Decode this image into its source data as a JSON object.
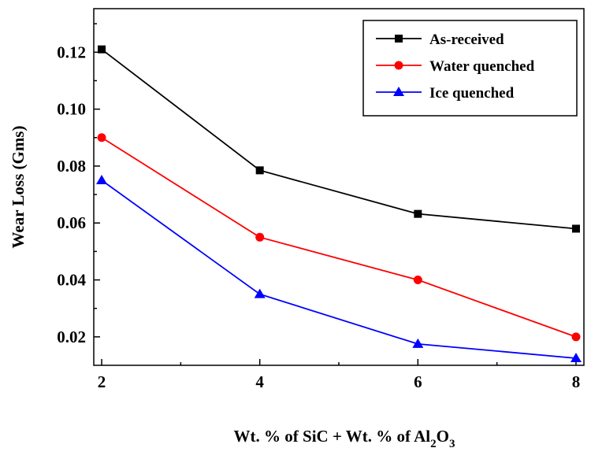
{
  "chart_data": {
    "type": "line",
    "title": "",
    "xlabel": "Wt. % of SiC + Wt. % of Al2O3",
    "xlabel_parts": {
      "prefix": "Wt. % of SiC + Wt. % of Al",
      "sub1": "2",
      "mid": "O",
      "sub2": "3"
    },
    "ylabel": "Wear Loss (Gms)",
    "xlim": [
      1.9,
      8.1
    ],
    "ylim": [
      0.01,
      0.1353
    ],
    "xticks": [
      "2",
      "4",
      "6",
      "8"
    ],
    "yticks": [
      "0.02",
      "0.04",
      "0.06",
      "0.08",
      "0.10",
      "0.12"
    ],
    "x": [
      2,
      4,
      6,
      8
    ],
    "series": [
      {
        "name": "As-received",
        "values": [
          0.121,
          0.0785,
          0.0632,
          0.058
        ],
        "color": "#000000",
        "marker": "square"
      },
      {
        "name": "Water quenched",
        "values": [
          0.09,
          0.055,
          0.04,
          0.02
        ],
        "color": "#ff0000",
        "marker": "circle"
      },
      {
        "name": "Ice quenched",
        "values": [
          0.075,
          0.035,
          0.0175,
          0.0125
        ],
        "color": "#0000ff",
        "marker": "triangle"
      }
    ],
    "legend_position": "top-right",
    "grid": false
  }
}
